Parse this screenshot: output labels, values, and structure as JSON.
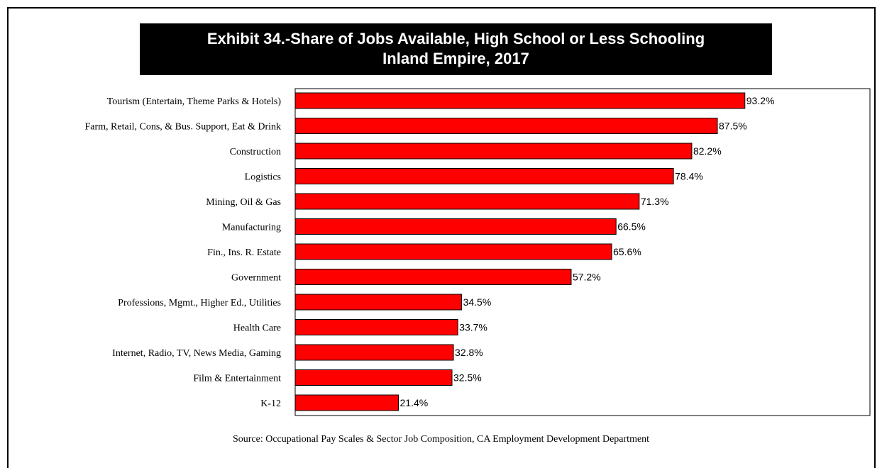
{
  "chart_data": {
    "type": "bar",
    "orientation": "horizontal",
    "title": "Exhibit 34.-Share of Jobs Available, High School or Less Schooling",
    "subtitle": "Inland Empire, 2017",
    "categories": [
      "Tourism (Entertain, Theme Parks & Hotels)",
      "Farm, Retail, Cons, & Bus. Support, Eat & Drink",
      "Construction",
      "Logistics",
      "Mining, Oil & Gas",
      "Manufacturing",
      "Fin., Ins. R. Estate",
      "Government",
      "Professions, Mgmt., Higher Ed., Utilities",
      "Health Care",
      "Internet, Radio, TV, News Media, Gaming",
      "Film & Entertainment",
      "K-12"
    ],
    "values": [
      93.2,
      87.5,
      82.2,
      78.4,
      71.3,
      66.5,
      65.6,
      57.2,
      34.5,
      33.7,
      32.8,
      32.5,
      21.4
    ],
    "value_labels": [
      "93.2%",
      "87.5%",
      "82.2%",
      "78.4%",
      "71.3%",
      "66.5%",
      "65.6%",
      "57.2%",
      "34.5%",
      "33.7%",
      "32.8%",
      "32.5%",
      "21.4%"
    ],
    "xlim": [
      0,
      100
    ],
    "grid": false,
    "bar_color": "#ff0000",
    "source": "Source:  Occupational Pay Scales & Sector Job Composition, CA Employment Development Department"
  }
}
